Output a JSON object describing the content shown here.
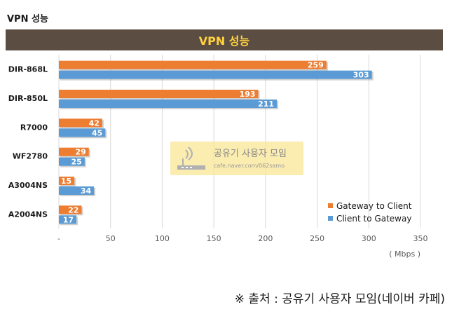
{
  "page": {
    "heading": "VPN 성능",
    "source_note": "※ 출처 : 공유기 사용자 모임(네이버 카페)"
  },
  "watermark": {
    "title": "공유기 사용자 모임",
    "url": "cafe.naver.com/062samo"
  },
  "chart_data": {
    "type": "bar",
    "orientation": "horizontal",
    "title": "VPN 성능",
    "categories": [
      "DIR-868L",
      "DIR-850L",
      "R7000",
      "WF2780",
      "A3004NS",
      "A2004NS"
    ],
    "series": [
      {
        "name": "Gateway to Client",
        "color": "#ed7d31",
        "values": [
          259,
          193,
          42,
          29,
          15,
          22
        ]
      },
      {
        "name": "Client to Gateway",
        "color": "#5b9bd5",
        "values": [
          303,
          211,
          45,
          25,
          34,
          17
        ]
      }
    ],
    "x_ticks": [
      "-",
      "50",
      "100",
      "150",
      "200",
      "250",
      "300",
      "350"
    ],
    "xlim": [
      0,
      350
    ],
    "unit_label": "( Mbps )",
    "grid": true,
    "legend_position": "bottom-right"
  }
}
